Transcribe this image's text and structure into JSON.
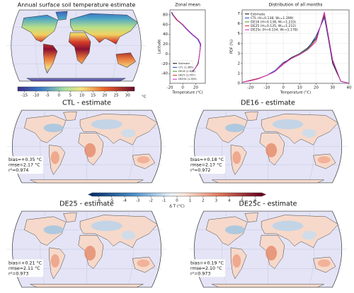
{
  "title_map": {
    "title": "Annual surface soil temperature estimate",
    "colorbar": {
      "lim": [
        -18,
        33
      ],
      "ticks": [
        -15,
        -10,
        -5,
        0,
        5,
        10,
        15,
        20,
        25,
        30
      ],
      "unit": "°C"
    }
  },
  "chart_data": [
    {
      "type": "line",
      "orientation": "horizontal",
      "title": "Zonal mean",
      "xlabel": "Temperature (°C)",
      "ylabel": "Latitude",
      "y": [
        -55,
        -50,
        -40,
        -30,
        -20,
        -10,
        0,
        10,
        20,
        30,
        40,
        50,
        60,
        70,
        80,
        85
      ],
      "series": [
        {
          "name": "Estimate",
          "color": "#000000",
          "values": [
            2,
            5,
            13,
            19,
            24,
            25,
            26,
            27,
            28,
            24,
            15,
            7,
            0,
            -9,
            -15,
            -17
          ]
        },
        {
          "name": "CTL (1.365)",
          "color": "#1f3fd0",
          "values": [
            1,
            4,
            12,
            19,
            24,
            25,
            26,
            27,
            27,
            23,
            14,
            6,
            -1,
            -10,
            -16,
            -18
          ]
        },
        {
          "name": "DE16 (1.626)",
          "color": "#2a9a2a",
          "values": [
            1,
            5,
            12,
            19,
            23,
            25,
            26,
            27,
            28,
            24,
            15,
            7,
            -1,
            -10,
            -16,
            -17
          ]
        },
        {
          "name": "DE25 (1.557)",
          "color": "#d62728",
          "values": [
            2,
            5,
            13,
            19,
            24,
            25,
            26,
            27,
            28,
            24,
            15,
            7,
            0,
            -10,
            -15,
            -17
          ]
        },
        {
          "name": "DE25c (1.553)",
          "color": "#d020d0",
          "values": [
            2,
            5,
            13,
            19,
            24,
            25,
            26,
            27,
            28,
            24,
            15,
            7,
            0,
            -9,
            -15,
            -17
          ]
        }
      ],
      "xlim": [
        -20,
        35
      ],
      "xticks": [
        -20,
        0,
        20
      ],
      "ylim": [
        -60,
        90
      ],
      "yticks": [
        -40,
        -20,
        0,
        20,
        40,
        60,
        80
      ],
      "legend": "lower left"
    },
    {
      "type": "line",
      "orientation": "vertical",
      "title": "Distribution of all months",
      "xlabel": "Temperature (°C)",
      "ylabel": "PDF (%)",
      "x": [
        -25,
        -20,
        -15,
        -10,
        -5,
        0,
        5,
        10,
        15,
        20,
        25,
        30,
        35,
        40
      ],
      "series": [
        {
          "name": "Estimate",
          "color": "#000000",
          "values": [
            0.1,
            0.3,
            0.5,
            0.8,
            1.2,
            2.0,
            2.6,
            3.0,
            3.6,
            4.6,
            6.8,
            2.0,
            0.2,
            0.0
          ]
        },
        {
          "name": "CTL (H=0.138, W₁=1.299)",
          "color": "#1f3fd0",
          "values": [
            0.1,
            0.3,
            0.5,
            0.8,
            1.3,
            2.1,
            2.5,
            2.9,
            3.5,
            4.8,
            6.6,
            2.2,
            0.2,
            0.0
          ]
        },
        {
          "name": "DE16 (H=0.138, W₁=1.233)",
          "color": "#2a9a2a",
          "values": [
            0.1,
            0.3,
            0.5,
            0.8,
            1.2,
            2.0,
            2.5,
            2.9,
            3.5,
            4.5,
            6.9,
            2.3,
            0.2,
            0.0
          ]
        },
        {
          "name": "DE25 (H=0.135, W₁=1.212)",
          "color": "#d62728",
          "values": [
            0.1,
            0.3,
            0.5,
            0.8,
            1.2,
            2.0,
            2.5,
            2.9,
            3.4,
            4.4,
            7.0,
            2.3,
            0.2,
            0.0
          ]
        },
        {
          "name": "DE25c (H=0.134, W₁=1.178)",
          "color": "#d020d0",
          "values": [
            0.1,
            0.25,
            0.45,
            0.8,
            1.2,
            1.9,
            2.5,
            2.9,
            3.4,
            4.2,
            7.2,
            2.4,
            0.2,
            0.0
          ]
        }
      ],
      "xlim": [
        -25,
        40
      ],
      "xticks": [
        -20,
        -10,
        0,
        10,
        20,
        30,
        40
      ],
      "ylim": [
        0,
        7.4
      ],
      "yticks": [
        0,
        1,
        2,
        3,
        4,
        5,
        6,
        7
      ],
      "grid": true,
      "legend": "upper left"
    }
  ],
  "difference_maps": {
    "colorbar": {
      "lim": [
        -6.5,
        6.5
      ],
      "ticks": [
        -6,
        -5,
        -4,
        -3,
        -2,
        -1,
        0,
        1,
        2,
        3,
        4,
        5,
        6
      ],
      "label": "Δ T (°C)"
    },
    "panels": [
      {
        "title": "CTL - estimate",
        "bias": "bias=+0.35 °C",
        "rmse": "rmse=2.17 °C",
        "r2": "r²=0.974"
      },
      {
        "title": "DE16 - estimate",
        "bias": "bias=+0.18 °C",
        "rmse": "rmse=2.17 °C",
        "r2": "r²=0.972"
      },
      {
        "title": "DE25 - estimate",
        "bias": "bias=+0.21 °C",
        "rmse": "rmse=2.11 °C",
        "r2": "r²=0.973"
      },
      {
        "title": "DE25c - estimate",
        "bias": "bias=+0.19 °C",
        "rmse": "rmse=2.10 °C",
        "r2": "r²=0.973"
      }
    ]
  }
}
